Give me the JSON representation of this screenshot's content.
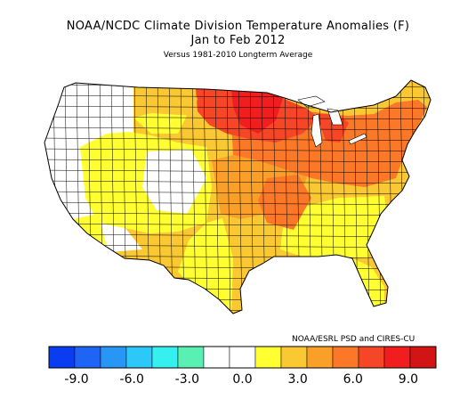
{
  "header": {
    "title": "NOAA/NCDC Climate Division Temperature Anomalies (F)",
    "period": "Jan to Feb 2012",
    "baseline": "Versus 1981-2010 Longterm Average"
  },
  "credit": "NOAA/ESRL PSD and CIRES-CU",
  "legend": {
    "colors": [
      "#0a3cf0",
      "#1e64f5",
      "#2896f5",
      "#2cc8fa",
      "#36f0f0",
      "#5af0b4",
      "#ffffff",
      "#ffffff",
      "#ffff32",
      "#fac832",
      "#faa028",
      "#fa7828",
      "#f54628",
      "#f01e1e",
      "#d21414"
    ],
    "ticks": [
      "-9.0",
      "-6.0",
      "-3.0",
      "0.0",
      "3.0",
      "6.0",
      "9.0"
    ],
    "tick_values": [
      -9,
      -6,
      -3,
      0,
      3,
      6,
      9
    ],
    "range": [
      -10.5,
      10.5
    ]
  },
  "map_colors": {
    "near_zero": "#ffffff",
    "slight_warm": "#ffff32",
    "moderate_warm": "#fac832",
    "warm": "#faa028",
    "very_warm": "#fa7828",
    "hot": "#f54628",
    "hottest": "#f01e1e"
  }
}
